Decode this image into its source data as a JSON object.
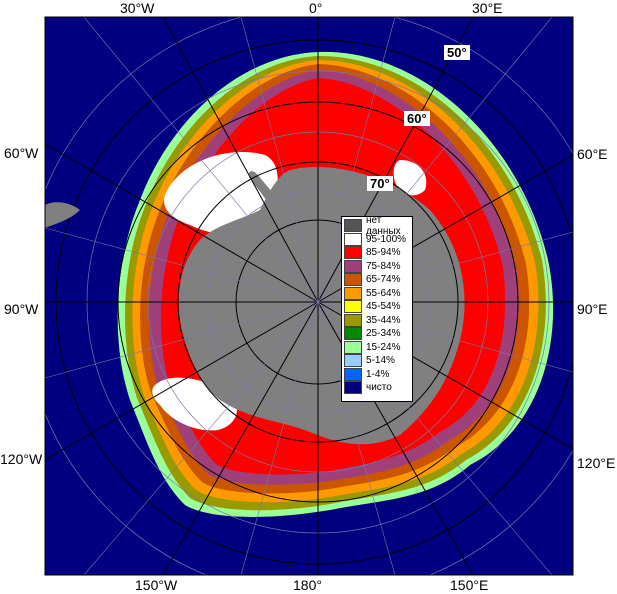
{
  "axes": {
    "top": [
      "30°W",
      "0°",
      "30°E"
    ],
    "bottom": [
      "150°W",
      "180°",
      "150°E"
    ],
    "left": [
      "60°W",
      "90°W",
      "120°W"
    ],
    "right": [
      "60°E",
      "90°E",
      "120°E"
    ],
    "latitudes": [
      "50°",
      "60°",
      "70°"
    ]
  },
  "legend": {
    "items": [
      {
        "label": "нет данных",
        "color": "#555555"
      },
      {
        "label": "95-100%",
        "color": "#ffffff"
      },
      {
        "label": "85-94%",
        "color": "#ff0000"
      },
      {
        "label": "75-84%",
        "color": "#a0407a"
      },
      {
        "label": "65-74%",
        "color": "#cc5500"
      },
      {
        "label": "55-64%",
        "color": "#ff9900"
      },
      {
        "label": "45-54%",
        "color": "#ffff00"
      },
      {
        "label": "35-44%",
        "color": "#999900"
      },
      {
        "label": "25-34%",
        "color": "#008800"
      },
      {
        "label": "15-24%",
        "color": "#99ff99"
      },
      {
        "label": "5-14%",
        "color": "#99ccff"
      },
      {
        "label": "1-4%",
        "color": "#0066ff"
      },
      {
        "label": "чисто",
        "color": "#000080"
      }
    ]
  },
  "colors": {
    "ocean": "#000080",
    "continent": "#808080",
    "continent_dark": "#666666",
    "grid": "#000000",
    "grid_faint": "#7777aa"
  }
}
